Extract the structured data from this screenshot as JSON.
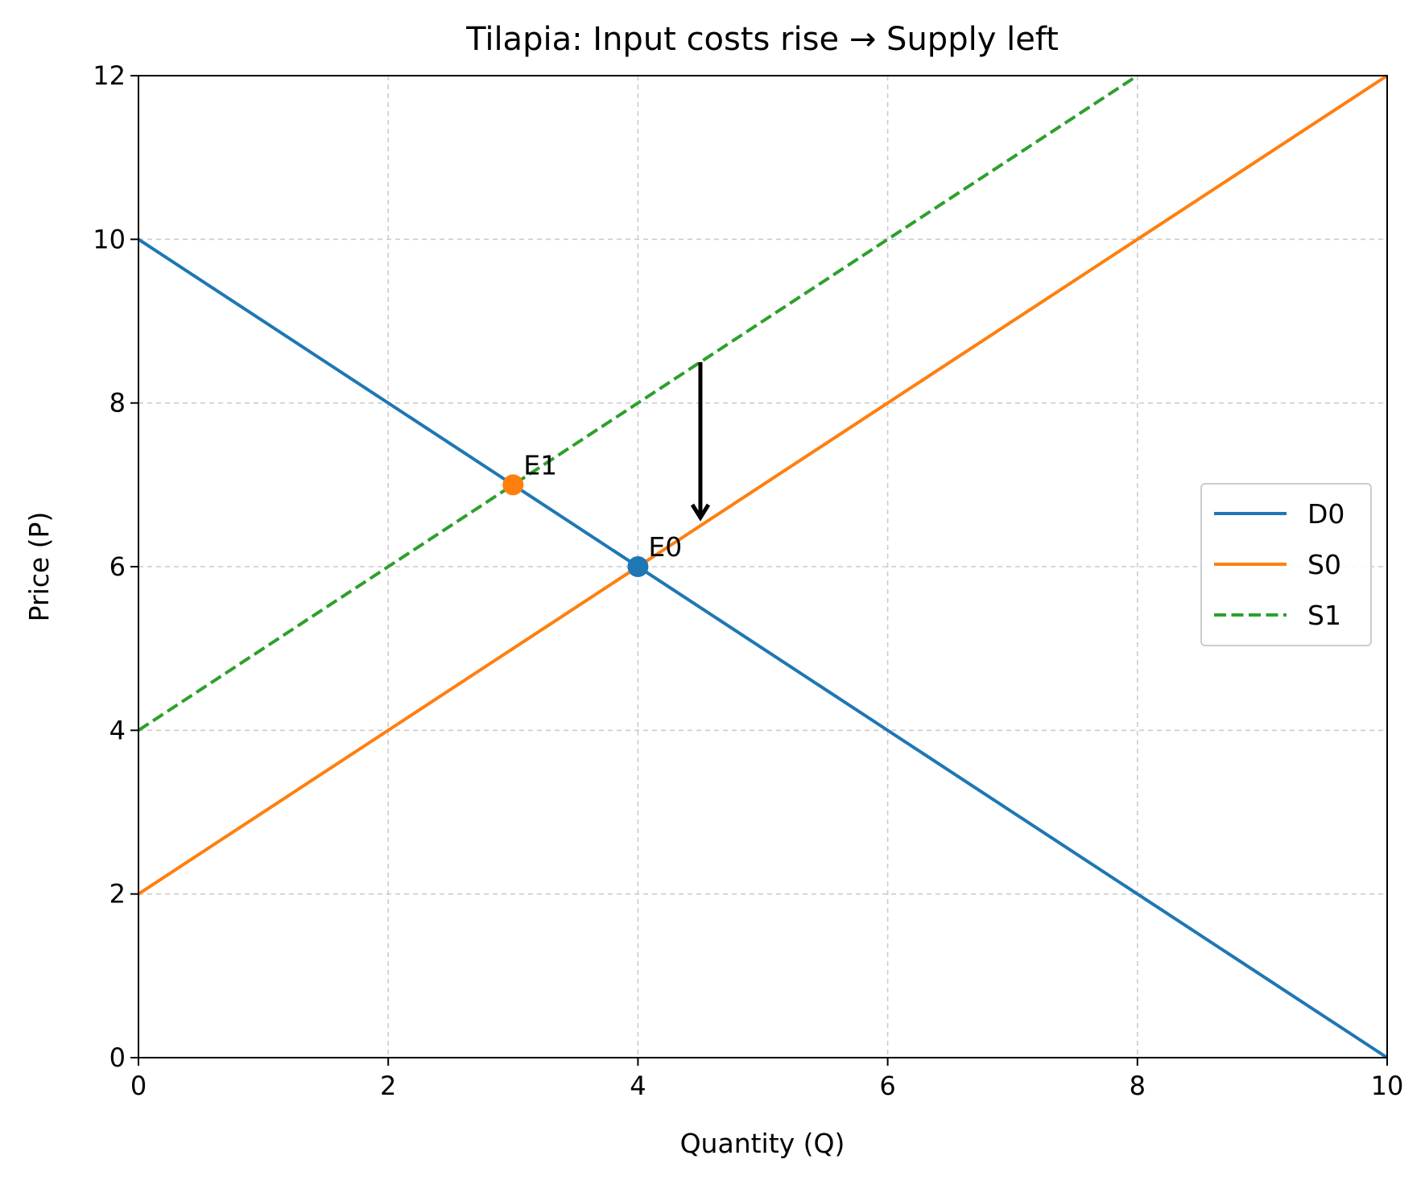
{
  "chart_data": {
    "type": "line",
    "title": "Tilapia: Input costs rise → Supply left",
    "xlabel": "Quantity (Q)",
    "ylabel": "Price (P)",
    "xlim": [
      0,
      10
    ],
    "ylim": [
      0,
      12
    ],
    "xticks": [
      0,
      2,
      4,
      6,
      8,
      10
    ],
    "yticks": [
      0,
      2,
      4,
      6,
      8,
      10,
      12
    ],
    "grid": true,
    "legend_position": "center-right",
    "series": [
      {
        "name": "D0",
        "color": "#1f77b4",
        "style": "solid",
        "x": [
          0,
          10
        ],
        "y": [
          10,
          0
        ]
      },
      {
        "name": "S0",
        "color": "#ff7f0e",
        "style": "solid",
        "x": [
          0,
          10
        ],
        "y": [
          2,
          12
        ]
      },
      {
        "name": "S1",
        "color": "#2ca02c",
        "style": "dashed",
        "x": [
          0,
          8
        ],
        "y": [
          4,
          12
        ]
      }
    ],
    "points": [
      {
        "label": "E0",
        "x": 4,
        "y": 6,
        "color": "#1f77b4"
      },
      {
        "label": "E1",
        "x": 3,
        "y": 7,
        "color": "#ff7f0e"
      }
    ],
    "arrow": {
      "x": 4.5,
      "y_from": 8.5,
      "y_to": 6.6,
      "color": "#000000"
    }
  }
}
